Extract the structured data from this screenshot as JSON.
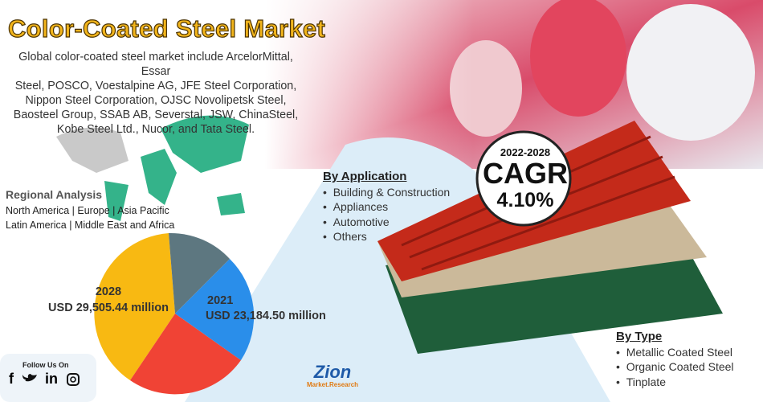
{
  "title": "Color-Coated Steel Market",
  "description": [
    "Global color-coated steel market include ArcelorMittal, Essar",
    "Steel, POSCO, Voestalpine AG, JFE Steel Corporation,",
    "Nippon Steel Corporation, OJSC Novolipetsk Steel,",
    "Baosteel Group, SSAB AB, Severstal, JSW, ChinaSteel,",
    "Kobe Steel Ltd., Nucor, and Tata Steel."
  ],
  "regional_analysis": {
    "heading": "Regional Analysis",
    "lines": [
      "North America | Europe | Asia Pacific",
      "Latin America | Middle East and Africa"
    ]
  },
  "by_application": {
    "heading": "By Application",
    "items": [
      "Building & Construction",
      "Appliances",
      "Automotive",
      "Others"
    ]
  },
  "cagr": {
    "period": "2022-2028",
    "label": "CAGR",
    "value": "4.10%"
  },
  "market_size": [
    {
      "year": "2028",
      "value": "USD 29,505.44 million"
    },
    {
      "year": "2021",
      "value": "USD 23,184.50 million"
    }
  ],
  "by_type": {
    "heading": "By Type",
    "items": [
      "Metallic Coated Steel",
      "Organic Coated Steel",
      "Tinplate"
    ]
  },
  "social": {
    "label": "Follow Us On",
    "icons": [
      "f",
      "in"
    ]
  },
  "logo": {
    "name": "Zion",
    "sub": "Market.Research"
  }
}
